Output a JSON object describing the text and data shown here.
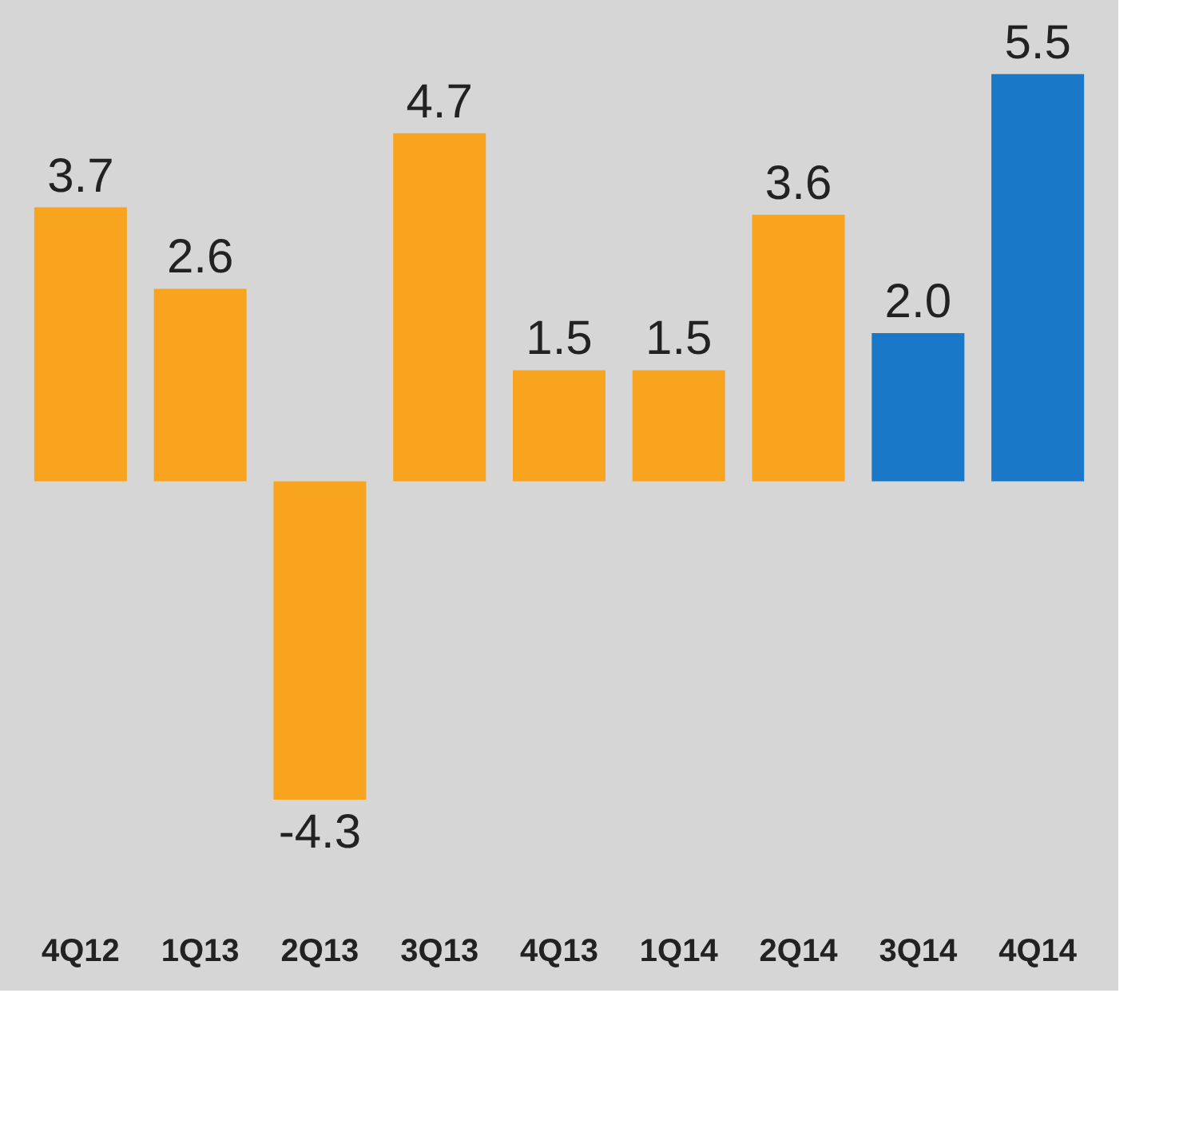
{
  "chart_data": {
    "type": "bar",
    "categories": [
      "4Q12",
      "1Q13",
      "2Q13",
      "3Q13",
      "4Q13",
      "1Q14",
      "2Q14",
      "3Q14",
      "4Q14"
    ],
    "values": [
      3.7,
      2.6,
      -4.3,
      4.7,
      1.5,
      1.5,
      3.6,
      2.0,
      5.5
    ],
    "colors": [
      "#f9a41e",
      "#f9a41e",
      "#f9a41e",
      "#f9a41e",
      "#f9a41e",
      "#f9a41e",
      "#f9a41e",
      "#1a78c8",
      "#1a78c8"
    ],
    "value_labels": [
      "3.7",
      "2.6",
      "-4.3",
      "4.7",
      "1.5",
      "1.5",
      "3.6",
      "2.0",
      "5.5"
    ],
    "grid": false
  }
}
